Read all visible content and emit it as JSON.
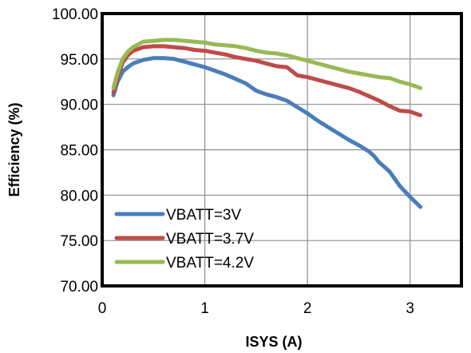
{
  "chart_data": {
    "type": "line",
    "title": "",
    "xlabel": "ISYS (A)",
    "ylabel": "Efficiency (%)",
    "xlim": [
      0,
      3.5
    ],
    "ylim": [
      70,
      100
    ],
    "xticks": [
      0,
      1,
      2,
      3
    ],
    "xtick_labels": [
      "0",
      "1",
      "2",
      "3"
    ],
    "yticks": [
      70,
      75,
      80,
      85,
      90,
      95,
      100
    ],
    "ytick_labels": [
      "70.00",
      "75.00",
      "80.00",
      "85.00",
      "90.00",
      "95.00",
      "100.00"
    ],
    "grid": true,
    "legend_position": "bottom-left",
    "series": [
      {
        "name": "VBATT=3V",
        "color": "#4a7ebb",
        "x": [
          0.11,
          0.15,
          0.2,
          0.25,
          0.3,
          0.4,
          0.5,
          0.6,
          0.7,
          0.8,
          0.9,
          1.0,
          1.1,
          1.2,
          1.3,
          1.4,
          1.5,
          1.6,
          1.7,
          1.8,
          1.9,
          2.0,
          2.1,
          2.2,
          2.3,
          2.4,
          2.5,
          2.6,
          2.65,
          2.7,
          2.8,
          2.9,
          3.0,
          3.1
        ],
        "values": [
          91.0,
          92.5,
          93.6,
          94.1,
          94.5,
          94.9,
          95.1,
          95.1,
          95.0,
          94.7,
          94.4,
          94.1,
          93.7,
          93.3,
          92.8,
          92.3,
          91.5,
          91.1,
          90.8,
          90.4,
          89.7,
          89.0,
          88.2,
          87.5,
          86.8,
          86.1,
          85.5,
          84.8,
          84.3,
          83.6,
          82.6,
          81.0,
          79.8,
          78.7
        ]
      },
      {
        "name": "VBATT=3.7V",
        "color": "#be4b48",
        "x": [
          0.11,
          0.15,
          0.2,
          0.25,
          0.3,
          0.4,
          0.5,
          0.6,
          0.7,
          0.8,
          0.9,
          1.0,
          1.1,
          1.2,
          1.3,
          1.4,
          1.5,
          1.6,
          1.7,
          1.8,
          1.9,
          2.0,
          2.1,
          2.2,
          2.3,
          2.4,
          2.5,
          2.6,
          2.7,
          2.8,
          2.9,
          3.0,
          3.1
        ],
        "values": [
          91.3,
          93.0,
          94.6,
          95.4,
          95.9,
          96.3,
          96.4,
          96.4,
          96.3,
          96.2,
          96.0,
          95.9,
          95.7,
          95.5,
          95.2,
          95.0,
          94.8,
          94.5,
          94.2,
          94.1,
          93.2,
          93.0,
          92.7,
          92.4,
          92.1,
          91.8,
          91.4,
          90.9,
          90.4,
          89.8,
          89.3,
          89.2,
          88.8
        ]
      },
      {
        "name": "VBATT=4.2V",
        "color": "#98b954",
        "x": [
          0.11,
          0.15,
          0.2,
          0.25,
          0.3,
          0.4,
          0.5,
          0.6,
          0.7,
          0.8,
          0.9,
          1.0,
          1.1,
          1.2,
          1.3,
          1.4,
          1.5,
          1.6,
          1.7,
          1.8,
          1.9,
          2.0,
          2.1,
          2.2,
          2.3,
          2.4,
          2.5,
          2.6,
          2.7,
          2.8,
          2.9,
          3.0,
          3.1
        ],
        "values": [
          91.8,
          93.5,
          95.0,
          95.8,
          96.3,
          96.9,
          97.0,
          97.1,
          97.1,
          97.0,
          96.9,
          96.8,
          96.6,
          96.5,
          96.4,
          96.2,
          95.9,
          95.7,
          95.6,
          95.4,
          95.1,
          94.8,
          94.5,
          94.2,
          93.9,
          93.6,
          93.4,
          93.2,
          93.0,
          92.9,
          92.5,
          92.2,
          91.8
        ]
      }
    ]
  }
}
